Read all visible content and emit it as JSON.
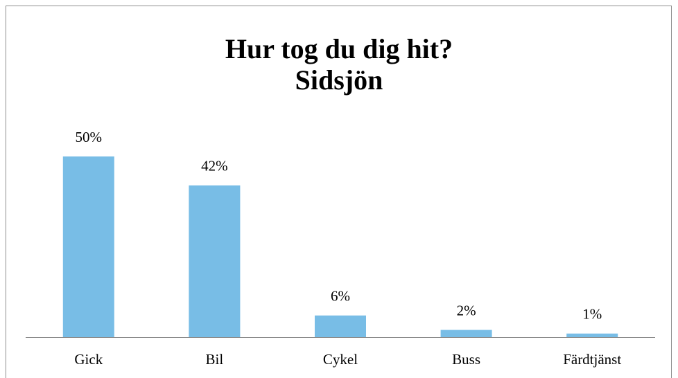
{
  "chart_data": {
    "type": "bar",
    "title": [
      "Hur tog du dig hit?",
      "Sidsjön"
    ],
    "categories": [
      "Gick",
      "Bil",
      "Cykel",
      "Buss",
      "Färdtjänst"
    ],
    "values": [
      50,
      42,
      6,
      2,
      1
    ],
    "value_labels": [
      "50%",
      "42%",
      "6%",
      "2%",
      "1%"
    ],
    "color": "#78bde6"
  }
}
